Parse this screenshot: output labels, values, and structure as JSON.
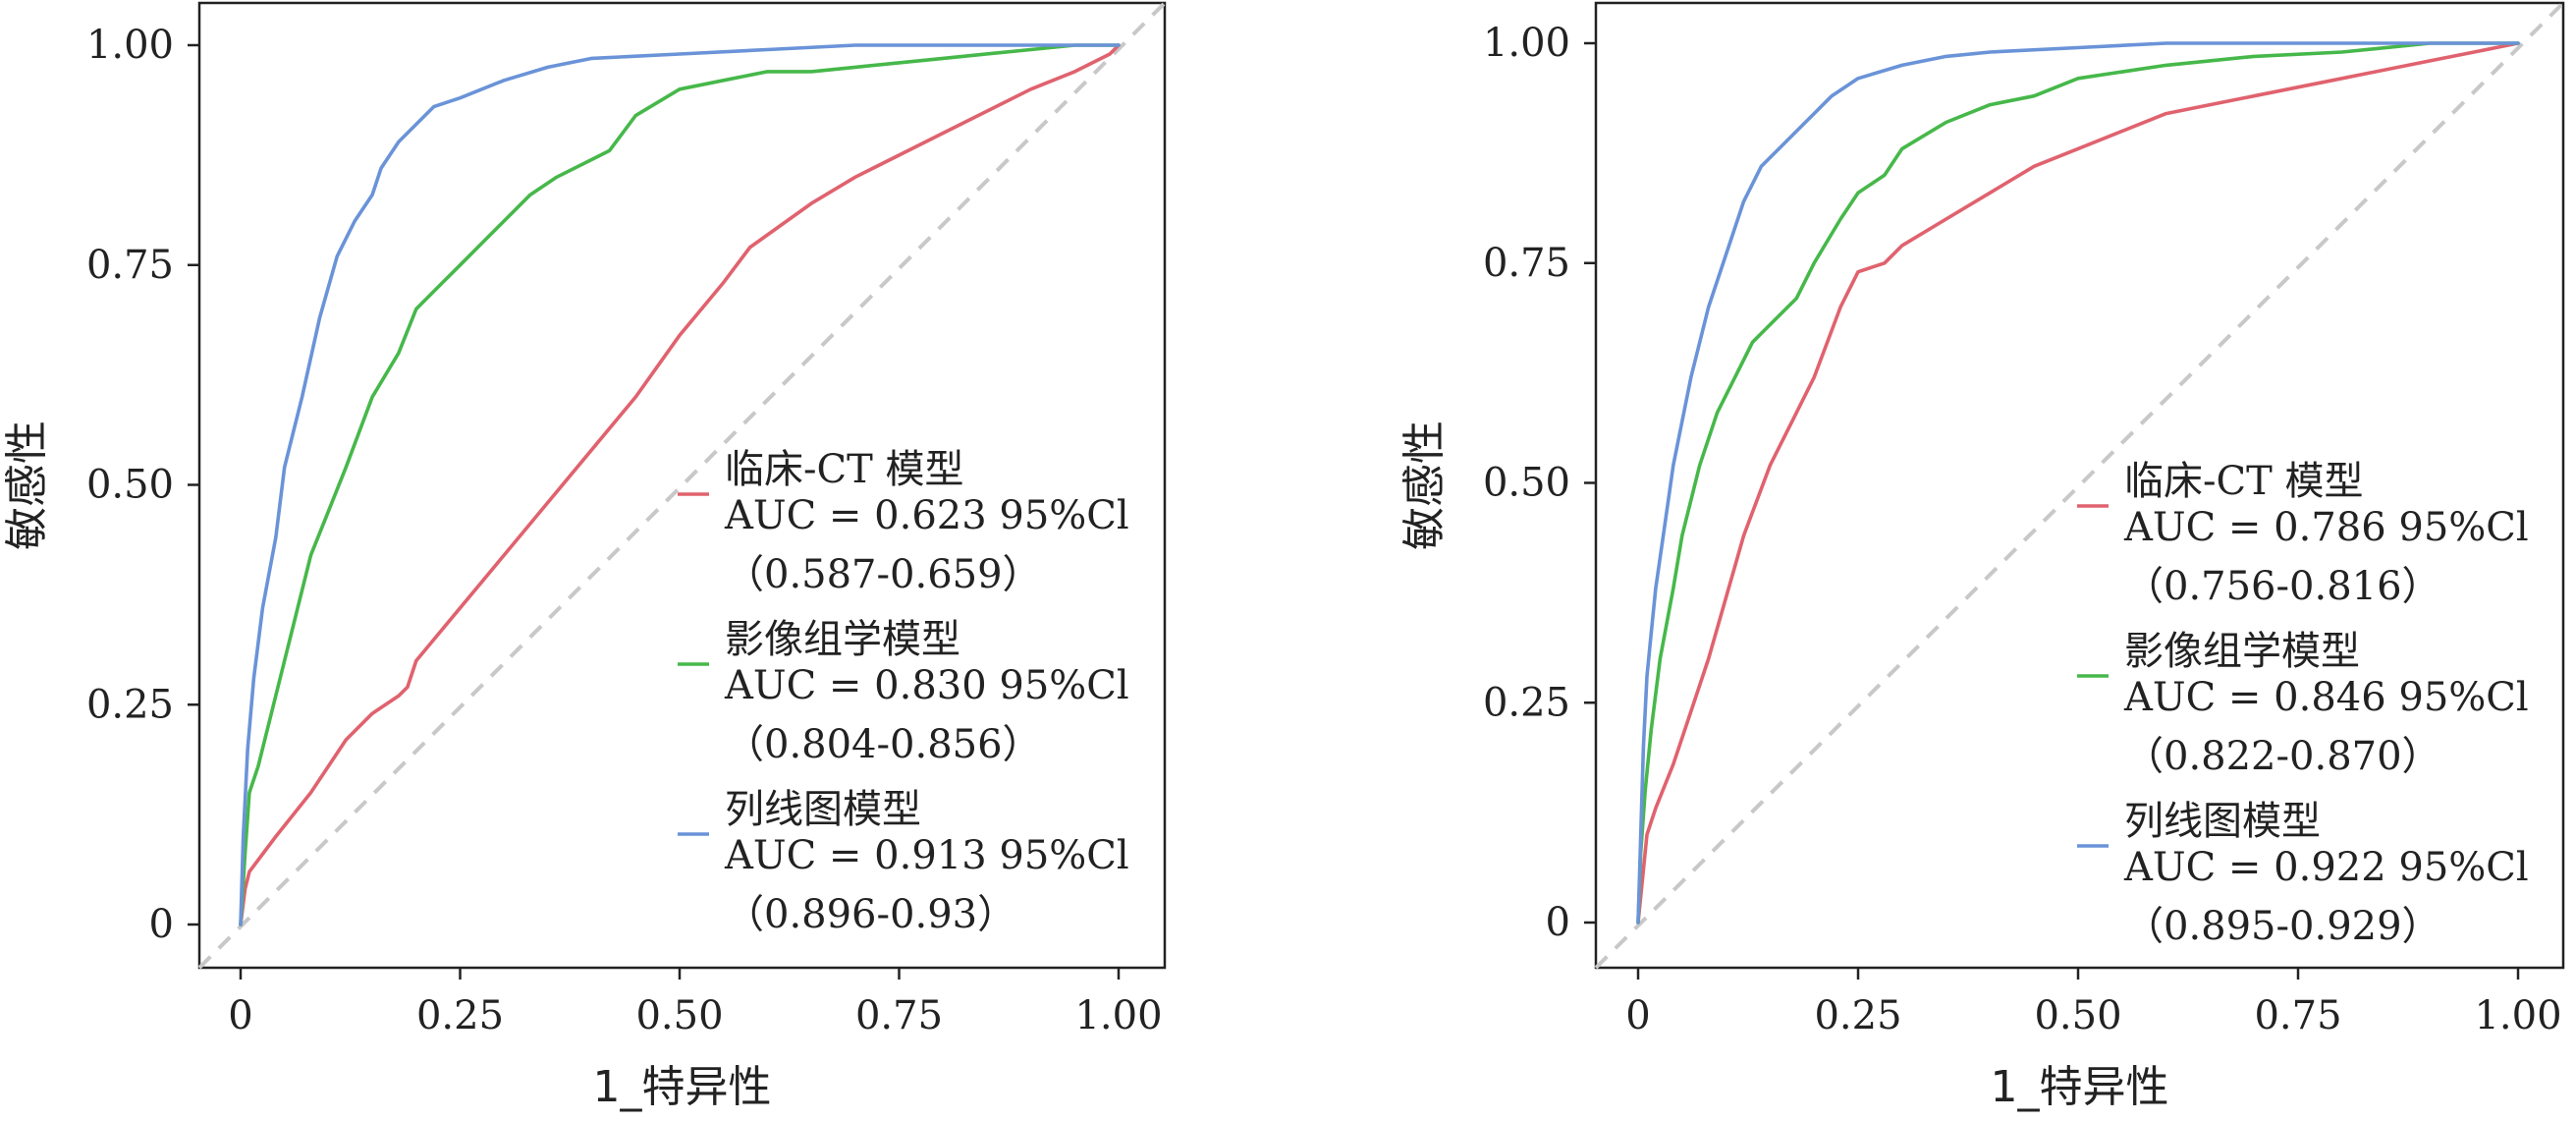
{
  "chart_data": [
    {
      "type": "line",
      "xlabel": "1_特异性",
      "ylabel": "敏感性",
      "xlim": [
        0,
        1
      ],
      "ylim": [
        0,
        1
      ],
      "xticks": [
        "0",
        "0.25",
        "0.50",
        "0.75",
        "1.00"
      ],
      "yticks": [
        "0",
        "0.25",
        "0.50",
        "0.75",
        "1.00"
      ],
      "diagonal": true,
      "legend_position": "center-right",
      "series": [
        {
          "name": "临床-CT 模型",
          "auc": "AUC = 0.623 95%Cl",
          "ci": "（0.587-0.659）",
          "color": "#e0626e",
          "x": [
            0,
            0.005,
            0.01,
            0.04,
            0.08,
            0.12,
            0.15,
            0.18,
            0.19,
            0.2,
            0.25,
            0.3,
            0.35,
            0.4,
            0.45,
            0.5,
            0.55,
            0.58,
            0.65,
            0.7,
            0.8,
            0.9,
            0.95,
            0.99,
            1.0
          ],
          "y": [
            0,
            0.04,
            0.06,
            0.1,
            0.15,
            0.21,
            0.24,
            0.26,
            0.27,
            0.3,
            0.36,
            0.42,
            0.48,
            0.54,
            0.6,
            0.67,
            0.73,
            0.77,
            0.82,
            0.85,
            0.9,
            0.95,
            0.97,
            0.99,
            1.0
          ]
        },
        {
          "name": "影像组学模型",
          "auc": "AUC = 0.830  95%Cl",
          "ci": "（0.804-0.856）",
          "color": "#46b84a",
          "x": [
            0,
            0.005,
            0.01,
            0.02,
            0.05,
            0.08,
            0.1,
            0.12,
            0.15,
            0.18,
            0.2,
            0.23,
            0.25,
            0.28,
            0.3,
            0.33,
            0.36,
            0.4,
            0.42,
            0.45,
            0.5,
            0.55,
            0.6,
            0.65,
            0.7,
            0.8,
            0.9,
            0.95,
            1.0
          ],
          "y": [
            0,
            0.08,
            0.15,
            0.18,
            0.3,
            0.42,
            0.47,
            0.52,
            0.6,
            0.65,
            0.7,
            0.73,
            0.75,
            0.78,
            0.8,
            0.83,
            0.85,
            0.87,
            0.88,
            0.92,
            0.95,
            0.96,
            0.97,
            0.97,
            0.975,
            0.985,
            0.995,
            1.0,
            1.0
          ]
        },
        {
          "name": "列线图模型",
          "auc": "AUC = 0.913  95%Cl",
          "ci": "（0.896-0.93）",
          "color": "#6a93d8",
          "x": [
            0,
            0.003,
            0.008,
            0.015,
            0.025,
            0.04,
            0.05,
            0.07,
            0.09,
            0.11,
            0.13,
            0.15,
            0.16,
            0.18,
            0.2,
            0.22,
            0.25,
            0.3,
            0.35,
            0.4,
            0.5,
            0.6,
            0.7,
            0.8,
            0.9,
            1.0
          ],
          "y": [
            0,
            0.1,
            0.2,
            0.28,
            0.36,
            0.44,
            0.52,
            0.6,
            0.69,
            0.76,
            0.8,
            0.83,
            0.86,
            0.89,
            0.91,
            0.93,
            0.94,
            0.96,
            0.975,
            0.985,
            0.99,
            0.995,
            1.0,
            1.0,
            1.0,
            1.0
          ]
        }
      ]
    },
    {
      "type": "line",
      "xlabel": "1_特异性",
      "ylabel": "敏感性",
      "xlim": [
        0,
        1
      ],
      "ylim": [
        0,
        1
      ],
      "xticks": [
        "0",
        "0.25",
        "0.50",
        "0.75",
        "1.00"
      ],
      "yticks": [
        "0",
        "0.25",
        "0.50",
        "0.75",
        "1.00"
      ],
      "diagonal": true,
      "legend_position": "center-right",
      "series": [
        {
          "name": "临床-CT 模型",
          "auc": "AUC = 0.786 95%Cl",
          "ci": "（0.756-0.816）",
          "color": "#e0626e",
          "x": [
            0,
            0.005,
            0.01,
            0.02,
            0.04,
            0.06,
            0.08,
            0.1,
            0.12,
            0.15,
            0.18,
            0.2,
            0.23,
            0.25,
            0.28,
            0.3,
            0.35,
            0.4,
            0.45,
            0.5,
            0.55,
            0.6,
            0.65,
            0.7,
            0.8,
            0.9,
            0.95,
            1.0
          ],
          "y": [
            0,
            0.05,
            0.1,
            0.13,
            0.18,
            0.24,
            0.3,
            0.37,
            0.44,
            0.52,
            0.58,
            0.62,
            0.7,
            0.74,
            0.75,
            0.77,
            0.8,
            0.83,
            0.86,
            0.88,
            0.9,
            0.92,
            0.93,
            0.94,
            0.96,
            0.98,
            0.99,
            1.0
          ]
        },
        {
          "name": "影像组学模型",
          "auc": "AUC = 0.846 95%Cl",
          "ci": "（0.822-0.870）",
          "color": "#46b84a",
          "x": [
            0,
            0.003,
            0.008,
            0.015,
            0.025,
            0.04,
            0.05,
            0.07,
            0.09,
            0.11,
            0.13,
            0.15,
            0.18,
            0.2,
            0.23,
            0.25,
            0.28,
            0.3,
            0.35,
            0.4,
            0.45,
            0.5,
            0.6,
            0.7,
            0.8,
            0.9,
            1.0
          ],
          "y": [
            0,
            0.08,
            0.15,
            0.22,
            0.3,
            0.38,
            0.44,
            0.52,
            0.58,
            0.62,
            0.66,
            0.68,
            0.71,
            0.75,
            0.8,
            0.83,
            0.85,
            0.88,
            0.91,
            0.93,
            0.94,
            0.96,
            0.975,
            0.985,
            0.99,
            1.0,
            1.0
          ]
        },
        {
          "name": "列线图模型",
          "auc": "AUC = 0.922 95%Cl",
          "ci": "（0.895-0.929）",
          "color": "#6a93d8",
          "x": [
            0,
            0.003,
            0.006,
            0.01,
            0.015,
            0.02,
            0.03,
            0.04,
            0.06,
            0.08,
            0.1,
            0.12,
            0.14,
            0.16,
            0.18,
            0.2,
            0.22,
            0.25,
            0.3,
            0.35,
            0.4,
            0.5,
            0.6,
            0.7,
            0.8,
            0.9,
            1.0
          ],
          "y": [
            0,
            0.1,
            0.2,
            0.28,
            0.33,
            0.38,
            0.45,
            0.52,
            0.62,
            0.7,
            0.76,
            0.82,
            0.86,
            0.88,
            0.9,
            0.92,
            0.94,
            0.96,
            0.975,
            0.985,
            0.99,
            0.995,
            1.0,
            1.0,
            1.0,
            1.0,
            1.0
          ]
        }
      ]
    }
  ]
}
